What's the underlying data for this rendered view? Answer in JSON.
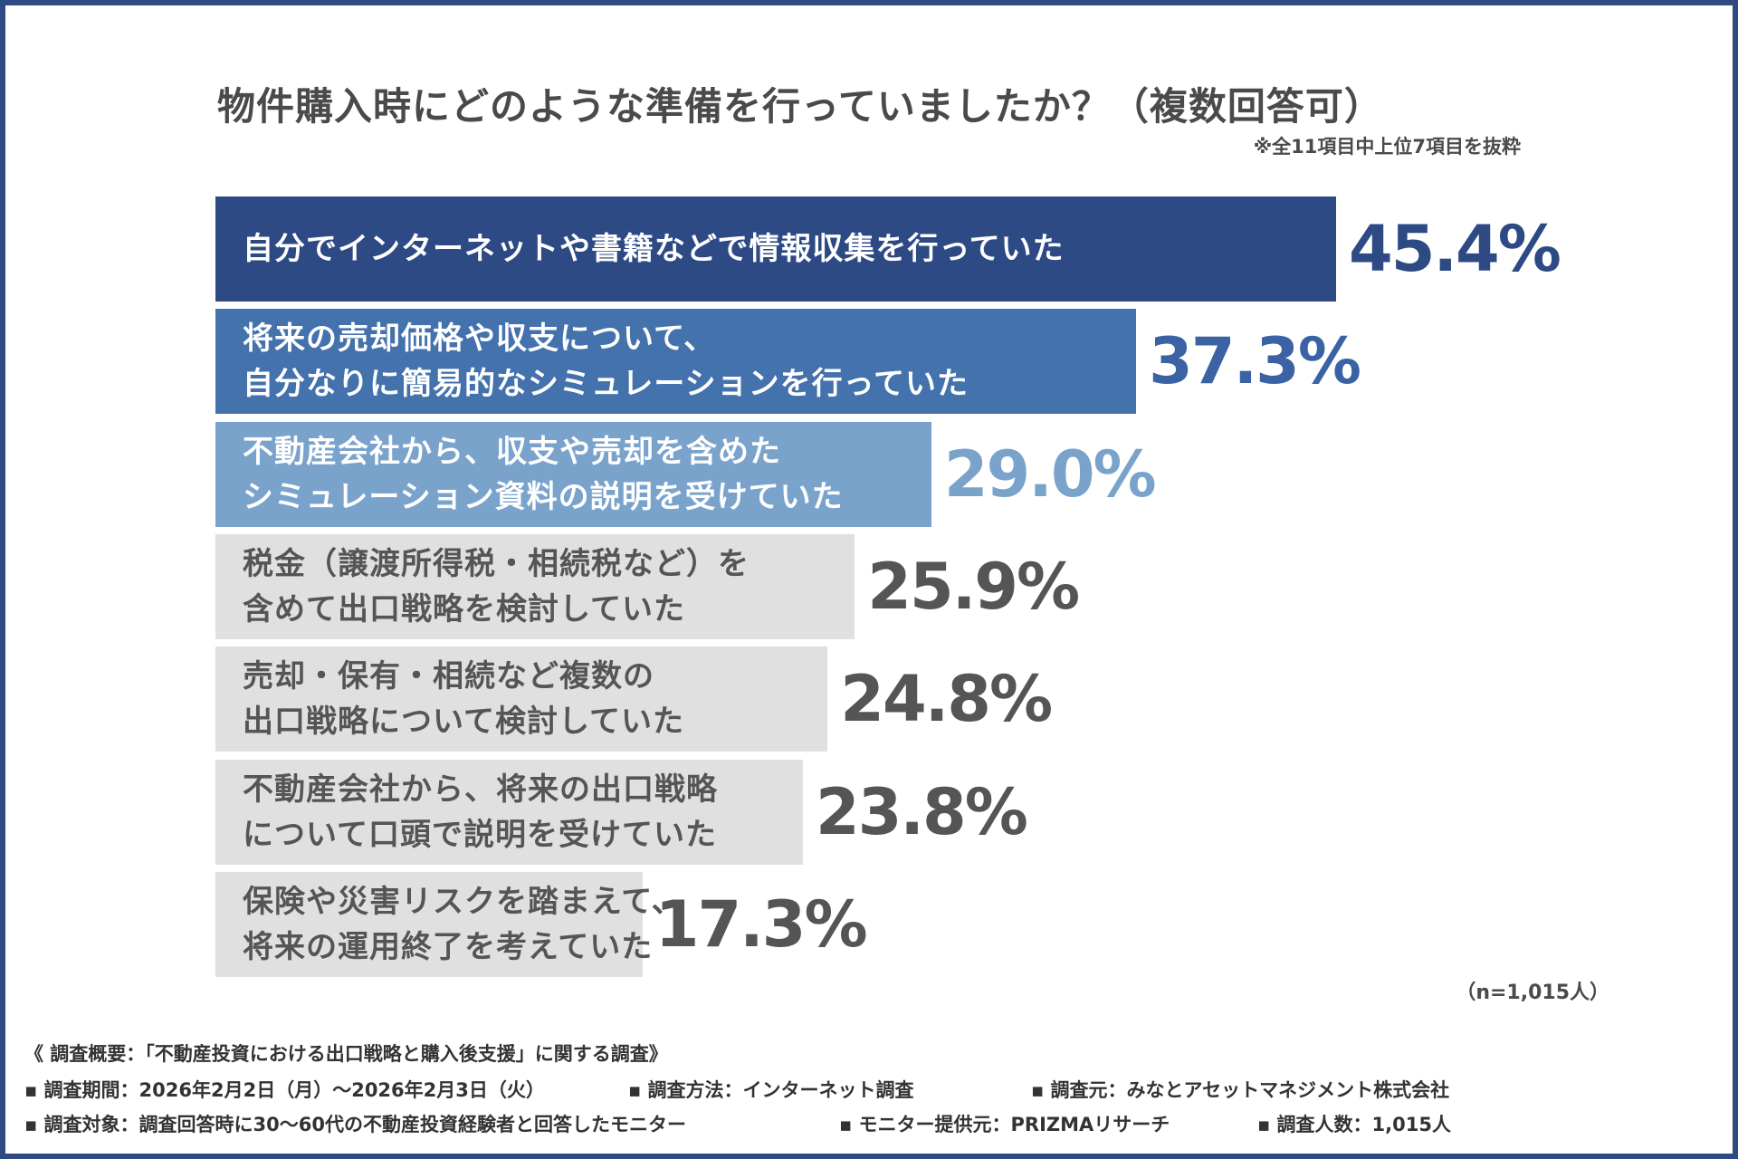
{
  "chart_data": {
    "type": "bar",
    "orientation": "horizontal",
    "title": "物件購入時にどのような準備を行っていましたか？（複数回答可）",
    "note": "※全11項目中上位7項目を抜粋",
    "categories": [
      "自分でインターネットや書籍などで情報収集を行っていた",
      "将来の売却価格や収支について、\n自分なりに簡易的なシミュレーションを行っていた",
      "不動産会社から、収支や売却を含めた\nシミュレーション資料の説明を受けていた",
      "税金（譲渡所得税・相続税など）を\n含めて出口戦略を検討していた",
      "売却・保有・相続など複数の\n出口戦略について検討していた",
      "不動産会社から、将来の出口戦略\nについて口頭で説明を受けていた",
      "保険や災害リスクを踏まえて、\n将来の運用終了を考えていた"
    ],
    "values": [
      45.4,
      37.3,
      29.0,
      25.9,
      24.8,
      23.8,
      17.3
    ],
    "value_labels": [
      "45.4%",
      "37.3%",
      "29.0%",
      "25.9%",
      "24.8%",
      "23.8%",
      "17.3%"
    ],
    "unit": "%",
    "bar_colors": [
      "#2e4a85",
      "#4472ad",
      "#7aa3cc",
      "#e0e0e0",
      "#e0e0e0",
      "#e0e0e0",
      "#e0e0e0"
    ],
    "label_colors": [
      "#ffffff",
      "#ffffff",
      "#ffffff",
      "#555555",
      "#555555",
      "#555555",
      "#555555"
    ],
    "value_colors": [
      "#2e4a85",
      "#3b63a3",
      "#7aa3cc",
      "#555555",
      "#555555",
      "#555555",
      "#555555"
    ],
    "sample": "（n=1,015人）"
  },
  "footer": {
    "heading": "《 調査概要：「不動産投資における出口戦略と購入後支援」に関する調査》",
    "period": "▪ 調査期間：2026年2月2日（月）～2026年2月3日（火）",
    "method": "▪ 調査方法：インターネット調査",
    "source": "▪ 調査元：みなとアセットマネジメント株式会社",
    "target": "▪ 調査対象：調査回答時に30～60代の不動産投資経験者と回答したモニター",
    "provider": "▪ モニター提供元：PRIZMAリサーチ",
    "count": "▪ 調査人数：1,015人"
  },
  "colors": {
    "frame": "#2d4a82"
  }
}
